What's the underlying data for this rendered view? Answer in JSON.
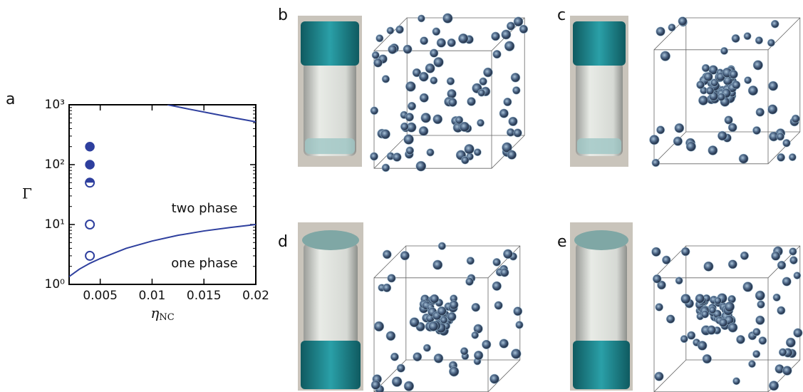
{
  "chart_data": {
    "type": "scatter",
    "ylabel": "Γ",
    "xlabel": "η",
    "xlabel_sub": "NC",
    "x": [
      0.004,
      0.004,
      0.004,
      0.004,
      0.004
    ],
    "values": [
      200,
      100,
      50,
      10,
      3
    ],
    "markers": [
      "filled",
      "filled",
      "half",
      "open",
      "open"
    ],
    "color": "#2e3f9e",
    "curves": [
      {
        "x": [
          0.002,
          0.003,
          0.004,
          0.005,
          0.0075,
          0.01,
          0.0125,
          0.015,
          0.0175,
          0.02
        ],
        "values": [
          1.35,
          1.8,
          2.25,
          2.7,
          4,
          5.3,
          6.6,
          7.8,
          8.9,
          10
        ]
      },
      {
        "x": [
          0.0115,
          0.0135,
          0.016,
          0.018,
          0.02
        ],
        "values": [
          1000,
          850,
          700,
          600,
          520
        ]
      }
    ],
    "annotations": [
      "two phase",
      "one phase"
    ],
    "xlim": [
      0.002,
      0.02
    ],
    "xticks": [
      0.005,
      0.01,
      0.015,
      0.02
    ],
    "ylim": [
      1,
      1000
    ],
    "log_y": true,
    "yticks": [
      {
        "value": 1,
        "label": "10⁰"
      },
      {
        "value": 10,
        "label": "10¹"
      },
      {
        "value": 100,
        "label": "10²"
      },
      {
        "value": 1000,
        "label": "10³"
      }
    ]
  },
  "panels": [
    "a",
    "b",
    "c",
    "d",
    "e"
  ]
}
